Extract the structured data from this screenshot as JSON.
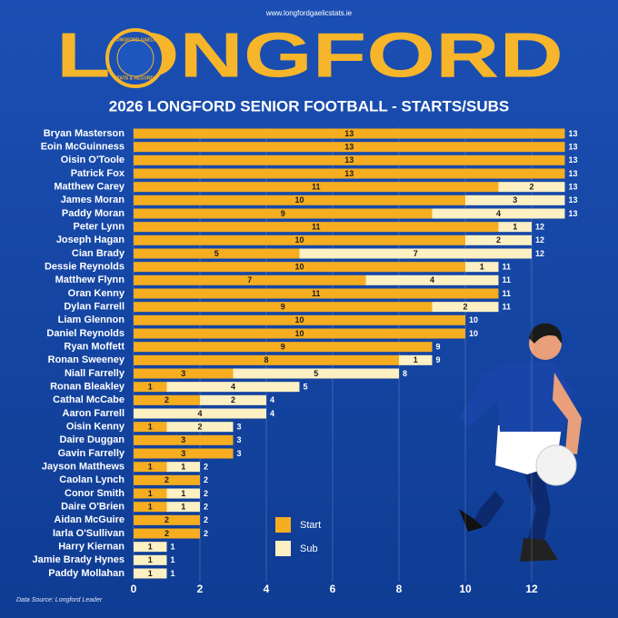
{
  "site_url": "www.longfordgaelicstats.ie",
  "logo_text": [
    "LONGFORD GAELIC",
    "STATS & RECORDS"
  ],
  "chart_data": {
    "type": "bar",
    "orientation": "horizontal",
    "stacked": true,
    "title": "LONGFORD",
    "subtitle": "2026 LONGFORD SENIOR FOOTBALL - STARTS/SUBS",
    "categories": [
      "Bryan Masterson",
      "Eoin McGuinness",
      "Oisin O'Toole",
      "Patrick Fox",
      "Matthew Carey",
      "James Moran",
      "Paddy Moran",
      "Peter Lynn",
      "Joseph Hagan",
      "Cian Brady",
      "Dessie Reynolds",
      "Matthew Flynn",
      "Oran Kenny",
      "Dylan Farrell",
      "Liam Glennon",
      "Daniel Reynolds",
      "Ryan Moffett",
      "Ronan Sweeney",
      "Niall Farrelly",
      "Ronan Bleakley",
      "Cathal McCabe",
      "Aaron Farrell",
      "Oisin Kenny",
      "Daire Duggan",
      "Gavin Farrelly",
      "Jayson Matthews",
      "Caolan Lynch",
      "Conor Smith",
      "Daire O'Brien",
      "Aidan McGuire",
      "Iarla O'Sullivan",
      "Harry Kiernan",
      "Jamie Brady Hynes",
      "Paddy Mollahan"
    ],
    "series": [
      {
        "name": "Start",
        "color": "#f6ad1f",
        "values": [
          13,
          13,
          13,
          13,
          11,
          10,
          9,
          11,
          10,
          5,
          10,
          7,
          11,
          9,
          10,
          10,
          9,
          8,
          3,
          1,
          2,
          null,
          1,
          3,
          3,
          1,
          2,
          1,
          1,
          2,
          2,
          null,
          null,
          null
        ]
      },
      {
        "name": "Sub",
        "color": "#fdf0c2",
        "values": [
          null,
          null,
          null,
          null,
          2,
          3,
          4,
          1,
          2,
          7,
          1,
          4,
          null,
          2,
          null,
          null,
          null,
          1,
          5,
          4,
          2,
          4,
          2,
          null,
          null,
          1,
          null,
          1,
          1,
          null,
          null,
          1,
          1,
          1
        ]
      }
    ],
    "totals": [
      13,
      13,
      13,
      13,
      13,
      13,
      13,
      12,
      12,
      12,
      11,
      11,
      11,
      11,
      10,
      10,
      9,
      9,
      8,
      5,
      4,
      4,
      3,
      3,
      3,
      2,
      2,
      2,
      2,
      2,
      2,
      1,
      1,
      1
    ],
    "xlim": [
      0,
      13
    ],
    "xticks": [
      0,
      2,
      4,
      6,
      8,
      10,
      12
    ],
    "grid": true,
    "legend": "lower-center",
    "source": "Data Source: Longford Leader"
  }
}
